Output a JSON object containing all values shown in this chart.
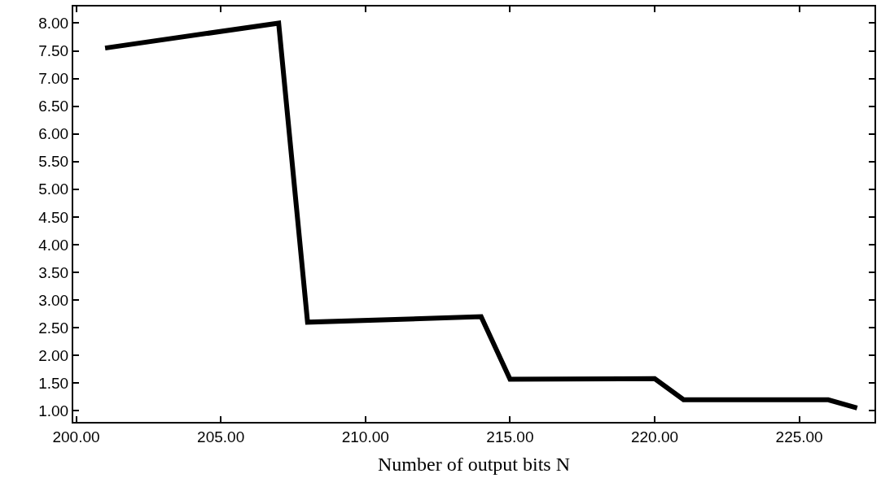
{
  "chart_data": {
    "type": "line",
    "xlabel": "Number of output bits N",
    "x": [
      201,
      207,
      208,
      214,
      215,
      220,
      221,
      226,
      227
    ],
    "series": [
      {
        "color": "#000000",
        "values": [
          7.55,
          8.0,
          2.6,
          2.7,
          1.57,
          1.58,
          1.2,
          1.2,
          1.05
        ]
      }
    ],
    "xlim": [
      199.9,
      227.6
    ],
    "ylim": [
      0.8,
      8.3
    ],
    "xticks": [
      {
        "value": 200,
        "label": "200.00"
      },
      {
        "value": 205,
        "label": "205.00"
      },
      {
        "value": 210,
        "label": "210.00"
      },
      {
        "value": 215,
        "label": "215.00"
      },
      {
        "value": 220,
        "label": "220.00"
      },
      {
        "value": 225,
        "label": "225.00"
      }
    ],
    "yticks": [
      {
        "value": 1,
        "label": "1.00"
      },
      {
        "value": 1.5,
        "label": "1.50"
      },
      {
        "value": 2,
        "label": "2.00"
      },
      {
        "value": 2.5,
        "label": "2.50"
      },
      {
        "value": 3,
        "label": "3.00"
      },
      {
        "value": 3.5,
        "label": "3.50"
      },
      {
        "value": 4,
        "label": "4.00"
      },
      {
        "value": 4.5,
        "label": "4.50"
      },
      {
        "value": 5,
        "label": "5.00"
      },
      {
        "value": 5.5,
        "label": "5.50"
      },
      {
        "value": 6,
        "label": "6.00"
      },
      {
        "value": 6.5,
        "label": "6.50"
      },
      {
        "value": 7,
        "label": "7.00"
      },
      {
        "value": 7.5,
        "label": "7.50"
      },
      {
        "value": 8,
        "label": "8.00"
      }
    ],
    "marker": "none",
    "line_style": "solid"
  }
}
